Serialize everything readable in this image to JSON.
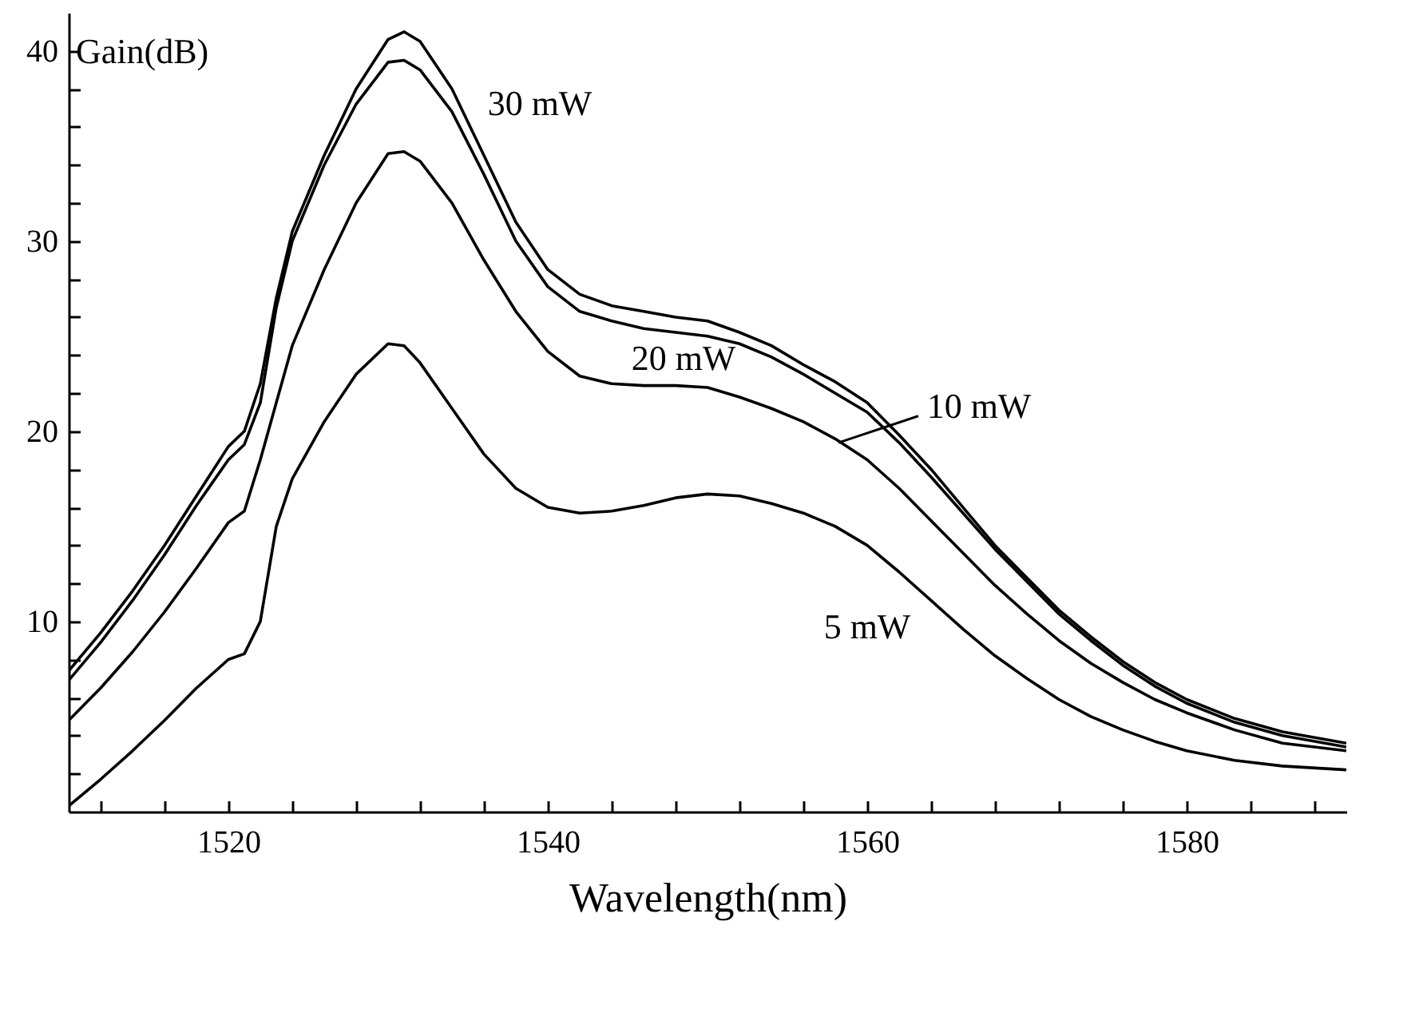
{
  "chart_data": {
    "type": "line",
    "xlabel": "Wavelength(nm)",
    "ylabel": "Gain(dB)",
    "x": [
      1510,
      1512,
      1514,
      1516,
      1518,
      1520,
      1521,
      1522,
      1523,
      1524,
      1526,
      1528,
      1530,
      1531,
      1532,
      1534,
      1536,
      1538,
      1540,
      1542,
      1544,
      1546,
      1548,
      1550,
      1552,
      1554,
      1556,
      1558,
      1560,
      1562,
      1564,
      1566,
      1568,
      1570,
      1572,
      1574,
      1576,
      1578,
      1580,
      1583,
      1586,
      1590
    ],
    "series": [
      {
        "name": "30 mW",
        "color": "#000000",
        "values": [
          7.4,
          9.4,
          11.6,
          14.0,
          16.6,
          19.2,
          20.0,
          22.5,
          27.0,
          30.5,
          34.5,
          38.0,
          40.6,
          41.0,
          40.5,
          38.0,
          34.5,
          31.0,
          28.5,
          27.2,
          26.6,
          26.3,
          26.0,
          25.8,
          25.2,
          24.5,
          23.5,
          22.6,
          21.5,
          19.8,
          18.0,
          16.0,
          14.0,
          12.3,
          10.6,
          9.2,
          7.9,
          6.8,
          5.9,
          4.9,
          4.2,
          3.6
        ]
      },
      {
        "name": "20 mW",
        "color": "#000000",
        "values": [
          6.9,
          8.9,
          11.1,
          13.5,
          16.1,
          18.5,
          19.3,
          21.5,
          26.5,
          30.0,
          34.0,
          37.2,
          39.4,
          39.5,
          39.0,
          36.8,
          33.5,
          30.0,
          27.6,
          26.3,
          25.8,
          25.4,
          25.2,
          25.0,
          24.6,
          23.9,
          23.0,
          22.0,
          21.0,
          19.4,
          17.6,
          15.7,
          13.8,
          12.1,
          10.4,
          9.0,
          7.7,
          6.6,
          5.7,
          4.7,
          4.0,
          3.4
        ]
      },
      {
        "name": "10 mW",
        "color": "#000000",
        "values": [
          4.8,
          6.5,
          8.4,
          10.5,
          12.8,
          15.2,
          15.8,
          18.5,
          21.5,
          24.5,
          28.5,
          32.0,
          34.6,
          34.7,
          34.2,
          32.0,
          29.0,
          26.3,
          24.2,
          22.9,
          22.5,
          22.4,
          22.4,
          22.3,
          21.8,
          21.2,
          20.5,
          19.6,
          18.5,
          17.0,
          15.3,
          13.6,
          11.9,
          10.4,
          9.0,
          7.8,
          6.8,
          5.9,
          5.2,
          4.3,
          3.6,
          3.2
        ]
      },
      {
        "name": "5 mW",
        "color": "#000000",
        "values": [
          0.3,
          1.7,
          3.2,
          4.8,
          6.5,
          8.0,
          8.3,
          10.0,
          15.0,
          17.5,
          20.5,
          23.0,
          24.6,
          24.5,
          23.6,
          21.2,
          18.8,
          17.0,
          16.0,
          15.7,
          15.8,
          16.1,
          16.5,
          16.7,
          16.6,
          16.2,
          15.7,
          15.0,
          14.0,
          12.6,
          11.1,
          9.6,
          8.2,
          7.0,
          5.9,
          5.0,
          4.3,
          3.7,
          3.2,
          2.7,
          2.4,
          2.2
        ]
      }
    ],
    "xlim": [
      1510,
      1590
    ],
    "xticks": [
      {
        "value": 1512,
        "label": null
      },
      {
        "value": 1516,
        "label": null
      },
      1520,
      {
        "value": 1524,
        "label": null
      },
      {
        "value": 1528,
        "label": null
      },
      {
        "value": 1532,
        "label": null
      },
      {
        "value": 1536,
        "label": null
      },
      1540,
      {
        "value": 1544,
        "label": null
      },
      {
        "value": 1548,
        "label": null
      },
      {
        "value": 1552,
        "label": null
      },
      {
        "value": 1556,
        "label": null
      },
      1560,
      {
        "value": 1564,
        "label": null
      },
      {
        "value": 1568,
        "label": null
      },
      {
        "value": 1572,
        "label": null
      },
      {
        "value": 1576,
        "label": null
      },
      1580,
      {
        "value": 1584,
        "label": null
      },
      {
        "value": 1588,
        "label": null
      }
    ],
    "ylim": [
      0,
      42
    ],
    "yticks": [
      {
        "value": 2,
        "label": null
      },
      {
        "value": 4,
        "label": null
      },
      {
        "value": 6,
        "label": null
      },
      {
        "value": 8,
        "label": null
      },
      10,
      {
        "value": 12,
        "label": null
      },
      {
        "value": 14,
        "label": null
      },
      {
        "value": 16,
        "label": null
      },
      {
        "value": 18,
        "label": null
      },
      20,
      {
        "value": 22,
        "label": null
      },
      {
        "value": 24,
        "label": null
      },
      {
        "value": 26,
        "label": null
      },
      {
        "value": 28,
        "label": null
      },
      30,
      {
        "value": 32,
        "label": null
      },
      {
        "value": 34,
        "label": null
      },
      {
        "value": 36,
        "label": null
      },
      {
        "value": 38,
        "label": null
      },
      40
    ],
    "grid": false,
    "marker": "none",
    "line_style": "solid"
  }
}
